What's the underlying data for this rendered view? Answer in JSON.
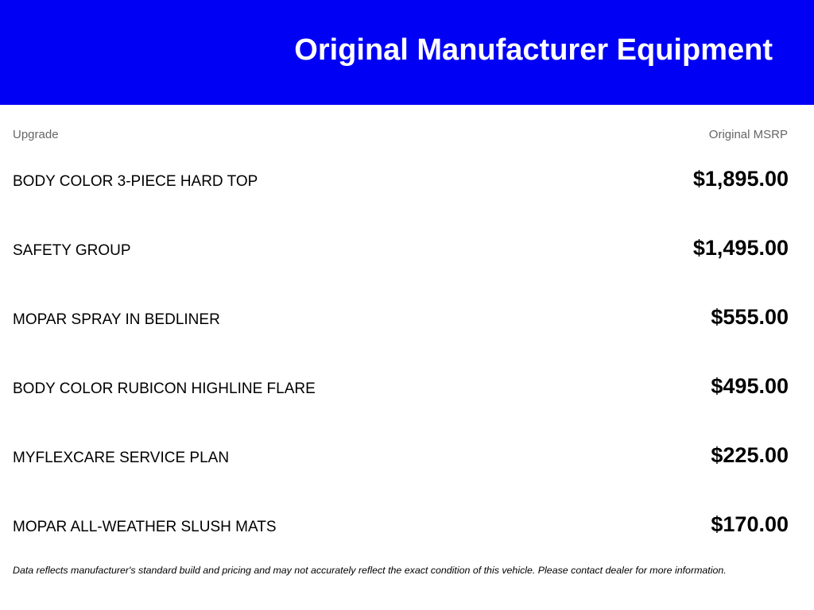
{
  "header": {
    "title": "Original Manufacturer Equipment",
    "background_color": "#0000f5"
  },
  "columns": {
    "upgrade": "Upgrade",
    "msrp": "Original MSRP"
  },
  "items": [
    {
      "name": "BODY COLOR 3-PIECE HARD TOP",
      "price": "$1,895.00"
    },
    {
      "name": "SAFETY GROUP",
      "price": "$1,495.00"
    },
    {
      "name": "MOPAR SPRAY IN BEDLINER",
      "price": "$555.00"
    },
    {
      "name": "BODY COLOR RUBICON HIGHLINE FLARE",
      "price": "$495.00"
    },
    {
      "name": "MYFLEXCARE SERVICE PLAN",
      "price": "$225.00"
    },
    {
      "name": "MOPAR ALL-WEATHER SLUSH MATS",
      "price": "$170.00"
    }
  ],
  "footer": "Data reflects manufacturer's standard build and pricing and may not accurately reflect the exact condition of this vehicle. Please contact dealer for more information."
}
